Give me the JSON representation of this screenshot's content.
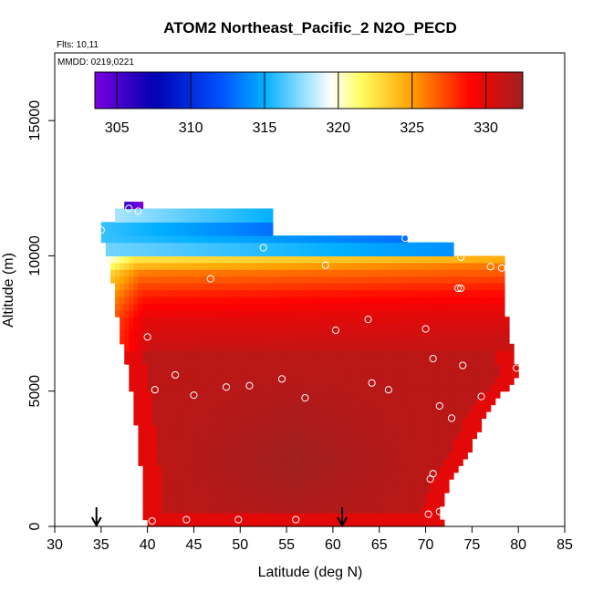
{
  "chart_data": {
    "type": "heatmap",
    "title": "ATOM2 Northeast_Pacific_2 N2O_PECD",
    "flights_text": "Flts: 10,11",
    "date_text": "MMDD: 0219,0221",
    "xlabel": "Latitude (deg N)",
    "ylabel": "Altitude (m)",
    "xlim": [
      30,
      85
    ],
    "ylim": [
      0,
      17500
    ],
    "x_ticks": [
      30,
      35,
      40,
      45,
      50,
      55,
      60,
      65,
      70,
      75,
      80,
      85
    ],
    "y_ticks": [
      0,
      5000,
      10000,
      15000
    ],
    "colorbar": {
      "range": [
        303.5,
        332.5
      ],
      "ticks": [
        305,
        310,
        315,
        320,
        325,
        330
      ],
      "colors": [
        "#7b00e0",
        "#0000b0",
        "#0050ff",
        "#00b0ff",
        "#ffffff",
        "#ffff60",
        "#ffa000",
        "#ff0000",
        "#a02020"
      ],
      "color_stops": [
        303.5,
        307.5,
        312,
        315,
        319.5,
        321.5,
        325,
        329,
        332.5
      ]
    },
    "field": {
      "lat_range": [
        35,
        80
      ],
      "lat_step": 0.5,
      "alt_step": 250,
      "top_gradient_profile": [
        [
          10000,
          322
        ],
        [
          9400,
          326
        ],
        [
          8500,
          328.5
        ],
        [
          7700,
          330
        ],
        [
          6600,
          331
        ]
      ],
      "bottom_value": 331.5,
      "core_value": 332.5,
      "upper_strata": [
        {
          "alt": [
            11750,
            12000
          ],
          "lat": [
            37.5,
            39.5
          ],
          "value": 306
        },
        {
          "alt": [
            11250,
            11750
          ],
          "lat": [
            36.5,
            53.5
          ],
          "value": 318
        },
        {
          "alt": [
            10750,
            11250
          ],
          "lat": [
            35,
            53.5
          ],
          "value": 316
        },
        {
          "alt": [
            10500,
            10750
          ],
          "lat": [
            35,
            68
          ],
          "value": 316
        },
        {
          "alt": [
            10000,
            10500
          ],
          "lat": [
            35.5,
            73
          ],
          "value": 317
        }
      ]
    },
    "envelope": [
      {
        "alt": 0,
        "lat": [
          40.0,
          72.0
        ]
      },
      {
        "alt": 500,
        "lat": [
          39.5,
          71.5
        ]
      },
      {
        "alt": 1500,
        "lat": [
          39.5,
          72.5
        ]
      },
      {
        "alt": 3000,
        "lat": [
          39.0,
          75.0
        ]
      },
      {
        "alt": 4500,
        "lat": [
          38.5,
          77.0
        ]
      },
      {
        "alt": 5500,
        "lat": [
          38.0,
          80.0
        ]
      },
      {
        "alt": 6500,
        "lat": [
          37.5,
          79.5
        ]
      },
      {
        "alt": 7000,
        "lat": [
          37.0,
          79.0
        ]
      },
      {
        "alt": 8500,
        "lat": [
          36.5,
          78.5
        ]
      },
      {
        "alt": 9500,
        "lat": [
          36.0,
          78.5
        ]
      },
      {
        "alt": 10000,
        "lat": [
          35.5,
          78.5
        ]
      }
    ],
    "observations": [
      {
        "lat": 38.0,
        "alt": 11750
      },
      {
        "lat": 39.0,
        "alt": 11650
      },
      {
        "lat": 35.0,
        "alt": 10950
      },
      {
        "lat": 52.5,
        "alt": 10300
      },
      {
        "lat": 67.8,
        "alt": 10650
      },
      {
        "lat": 73.8,
        "alt": 9950
      },
      {
        "lat": 59.2,
        "alt": 9650
      },
      {
        "lat": 77.0,
        "alt": 9600
      },
      {
        "lat": 78.2,
        "alt": 9550
      },
      {
        "lat": 46.8,
        "alt": 9150
      },
      {
        "lat": 73.5,
        "alt": 8800
      },
      {
        "lat": 73.8,
        "alt": 8800
      },
      {
        "lat": 63.8,
        "alt": 7650
      },
      {
        "lat": 70.0,
        "alt": 7300
      },
      {
        "lat": 60.3,
        "alt": 7250
      },
      {
        "lat": 40.0,
        "alt": 7000
      },
      {
        "lat": 70.8,
        "alt": 6200
      },
      {
        "lat": 74.0,
        "alt": 5950
      },
      {
        "lat": 79.8,
        "alt": 5850
      },
      {
        "lat": 43.0,
        "alt": 5600
      },
      {
        "lat": 54.5,
        "alt": 5450
      },
      {
        "lat": 64.2,
        "alt": 5300
      },
      {
        "lat": 51.0,
        "alt": 5200
      },
      {
        "lat": 48.5,
        "alt": 5150
      },
      {
        "lat": 66.0,
        "alt": 5050
      },
      {
        "lat": 40.8,
        "alt": 5050
      },
      {
        "lat": 45.0,
        "alt": 4850
      },
      {
        "lat": 57.0,
        "alt": 4750
      },
      {
        "lat": 76.0,
        "alt": 4800
      },
      {
        "lat": 71.5,
        "alt": 4450
      },
      {
        "lat": 72.8,
        "alt": 4000
      },
      {
        "lat": 70.8,
        "alt": 1950
      },
      {
        "lat": 70.5,
        "alt": 1750
      },
      {
        "lat": 71.5,
        "alt": 550
      },
      {
        "lat": 70.3,
        "alt": 450
      },
      {
        "lat": 40.5,
        "alt": 200
      },
      {
        "lat": 44.2,
        "alt": 250
      },
      {
        "lat": 49.8,
        "alt": 250
      },
      {
        "lat": 56.0,
        "alt": 250
      }
    ],
    "markers": [
      {
        "name": "marker-arrow-left",
        "lat": 34.5
      },
      {
        "name": "marker-arrow-right",
        "lat": 61.0
      }
    ]
  }
}
